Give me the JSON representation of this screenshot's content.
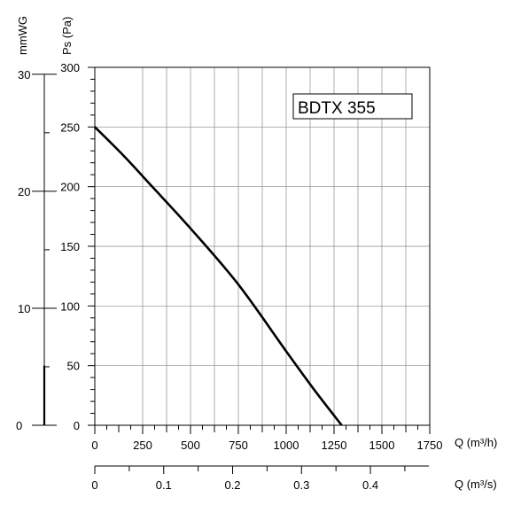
{
  "chart_data": {
    "type": "line",
    "model_label": "BDTX 355",
    "y_label_pa": "Ps (Pa)",
    "y_label_mmwg": "mmWG",
    "x_label_m3h": "Q (m³/h)",
    "x_label_m3s": "Q (m³/s)",
    "xlim": [
      0,
      1750
    ],
    "ylim": [
      0,
      300
    ],
    "x_ticks": [
      0,
      250,
      500,
      750,
      1000,
      1250,
      1500,
      1750
    ],
    "x_tick_labels": [
      "0",
      "250",
      "500",
      "750",
      "1000",
      "1250",
      "1500",
      "1750"
    ],
    "y_ticks": [
      0,
      50,
      100,
      150,
      200,
      250,
      300
    ],
    "y_tick_labels": [
      "0",
      "50",
      "100",
      "150",
      "200",
      "250",
      "300"
    ],
    "mmwg_ticks": [
      0,
      10,
      20,
      30
    ],
    "mmwg_tick_labels": [
      "0",
      "10",
      "20",
      "30"
    ],
    "m3s_ticks": [
      0,
      0.1,
      0.2,
      0.3,
      0.4
    ],
    "m3s_tick_labels": [
      "0",
      "0.1",
      "0.2",
      "0.3",
      "0.4"
    ],
    "grid": true,
    "series": [
      {
        "x": [
          0,
          150,
          300,
          500,
          750,
          1000,
          1150,
          1290
        ],
        "y": [
          250,
          226,
          200,
          165,
          118,
          62,
          29,
          0
        ]
      }
    ]
  }
}
